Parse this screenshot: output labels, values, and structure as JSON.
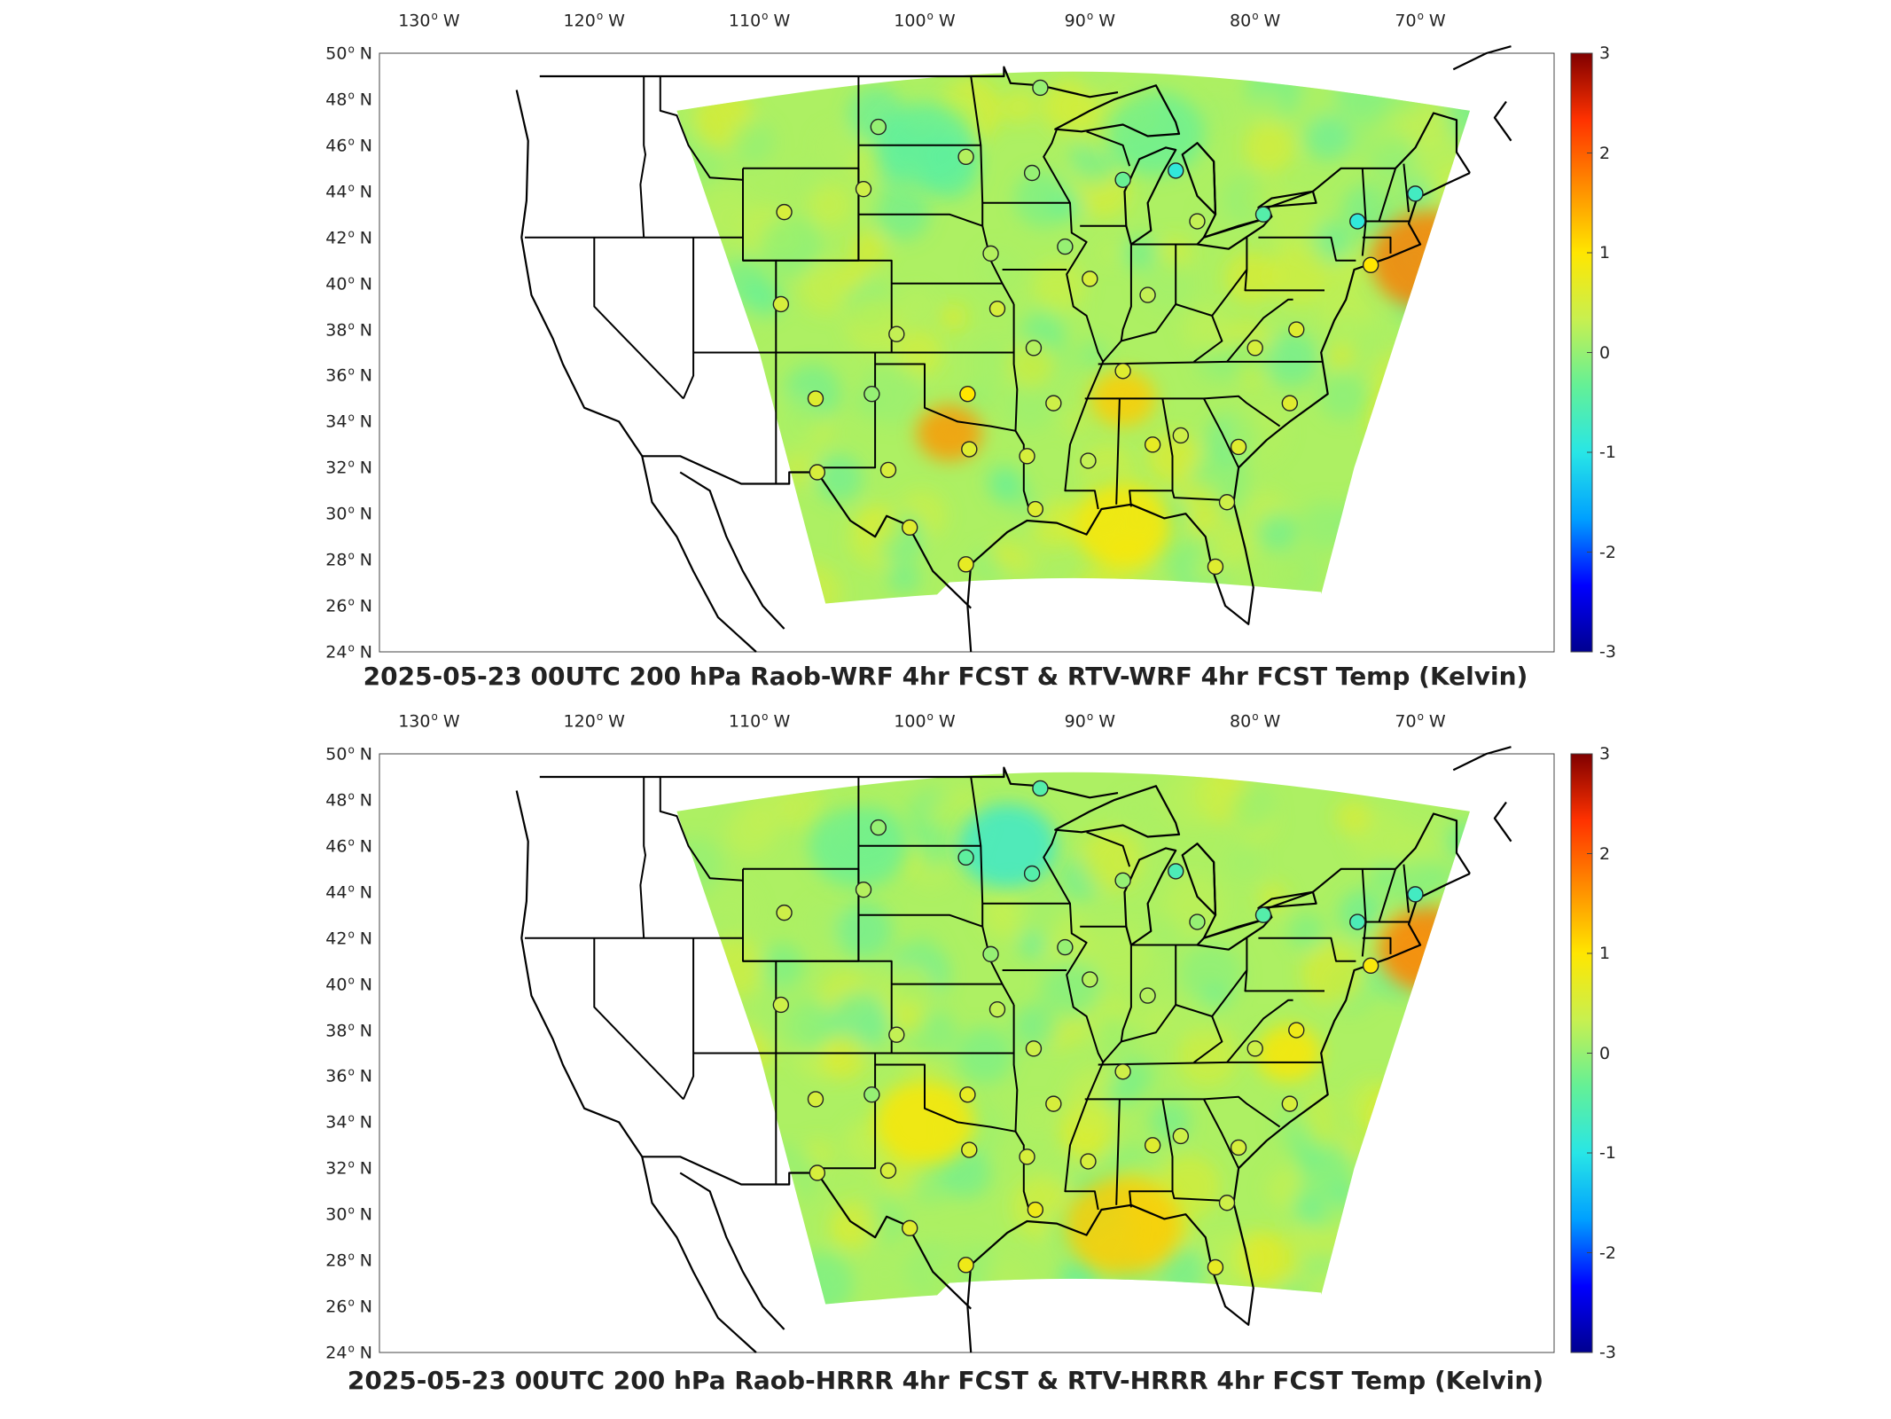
{
  "colors": {
    "scale": [
      "#00008f",
      "#0000ff",
      "#00a0ff",
      "#28e6e6",
      "#64f096",
      "#c8f050",
      "#ffe600",
      "#ff8c00",
      "#ff3200",
      "#800000"
    ],
    "border": "#000000",
    "station_ring": "#222222"
  },
  "axes": {
    "lon_ticks": [
      {
        "value": -130,
        "deg": "130",
        "hem": "W"
      },
      {
        "value": -120,
        "deg": "120",
        "hem": "W"
      },
      {
        "value": -110,
        "deg": "110",
        "hem": "W"
      },
      {
        "value": -100,
        "deg": "100",
        "hem": "W"
      },
      {
        "value": -90,
        "deg": "90",
        "hem": "W"
      },
      {
        "value": -80,
        "deg": "80",
        "hem": "W"
      },
      {
        "value": -70,
        "deg": "70",
        "hem": "W"
      }
    ],
    "lat_ticks": [
      {
        "value": 50,
        "deg": "50",
        "hem": "N"
      },
      {
        "value": 48,
        "deg": "48",
        "hem": "N"
      },
      {
        "value": 46,
        "deg": "46",
        "hem": "N"
      },
      {
        "value": 44,
        "deg": "44",
        "hem": "N"
      },
      {
        "value": 42,
        "deg": "42",
        "hem": "N"
      },
      {
        "value": 40,
        "deg": "40",
        "hem": "N"
      },
      {
        "value": 38,
        "deg": "38",
        "hem": "N"
      },
      {
        "value": 36,
        "deg": "36",
        "hem": "N"
      },
      {
        "value": 34,
        "deg": "34",
        "hem": "N"
      },
      {
        "value": 32,
        "deg": "32",
        "hem": "N"
      },
      {
        "value": 30,
        "deg": "30",
        "hem": "N"
      },
      {
        "value": 28,
        "deg": "28",
        "hem": "N"
      },
      {
        "value": 26,
        "deg": "26",
        "hem": "N"
      },
      {
        "value": 24,
        "deg": "24",
        "hem": "N"
      }
    ],
    "colorbar_ticks": [
      "3",
      "2",
      "1",
      "0",
      "-1",
      "-2",
      "-3"
    ],
    "colorbar_range": [
      -3,
      3
    ]
  },
  "panels": [
    {
      "id": "top",
      "title": "2025-05-23 00UTC 200 hPa Raob-WRF 4hr FCST & RTV-WRF 4hr FCST Temp (Kelvin)",
      "hotspots": [
        {
          "lon": -69.5,
          "lat": 41.0,
          "value": 1.8,
          "r": 3.5
        },
        {
          "lon": -98.5,
          "lat": 33.5,
          "value": 1.6,
          "r": 2.0
        },
        {
          "lon": -88,
          "lat": 35,
          "value": 1.2,
          "r": 2.0
        },
        {
          "lon": -88,
          "lat": 29.5,
          "value": 1.0,
          "r": 3.0
        },
        {
          "lon": -70,
          "lat": 34,
          "value": 0.8,
          "r": 3.0
        },
        {
          "lon": -100,
          "lat": 46,
          "value": -0.4,
          "r": 3.0
        },
        {
          "lon": -86,
          "lat": 46.5,
          "value": -0.3,
          "r": 3.0
        }
      ],
      "stations": [
        {
          "lon": -93.0,
          "lat": 48.5,
          "value": 0.0
        },
        {
          "lon": -102.8,
          "lat": 46.8,
          "value": 0.0
        },
        {
          "lon": -97.5,
          "lat": 45.5,
          "value": 0.2
        },
        {
          "lon": -93.5,
          "lat": 44.8,
          "value": 0.0
        },
        {
          "lon": -88.0,
          "lat": 44.5,
          "value": -0.3
        },
        {
          "lon": -84.8,
          "lat": 44.9,
          "value": -0.9
        },
        {
          "lon": -83.5,
          "lat": 42.7,
          "value": 0.3
        },
        {
          "lon": -79.5,
          "lat": 43.0,
          "value": -0.5
        },
        {
          "lon": -73.8,
          "lat": 42.7,
          "value": -0.9
        },
        {
          "lon": -70.3,
          "lat": 43.9,
          "value": -0.7
        },
        {
          "lon": -73.0,
          "lat": 40.8,
          "value": 1.0
        },
        {
          "lon": -108.5,
          "lat": 43.1,
          "value": 0.5
        },
        {
          "lon": -103.7,
          "lat": 44.1,
          "value": 0.4
        },
        {
          "lon": -96.0,
          "lat": 41.3,
          "value": 0.2
        },
        {
          "lon": -91.5,
          "lat": 41.6,
          "value": 0.0
        },
        {
          "lon": -90.0,
          "lat": 40.2,
          "value": 0.5
        },
        {
          "lon": -86.5,
          "lat": 39.5,
          "value": 0.3
        },
        {
          "lon": -108.7,
          "lat": 39.1,
          "value": 0.5
        },
        {
          "lon": -101.7,
          "lat": 37.8,
          "value": 0.3
        },
        {
          "lon": -95.6,
          "lat": 38.9,
          "value": 0.5
        },
        {
          "lon": -93.4,
          "lat": 37.2,
          "value": 0.2
        },
        {
          "lon": -80.0,
          "lat": 37.2,
          "value": 0.5
        },
        {
          "lon": -77.5,
          "lat": 38.0,
          "value": 0.6
        },
        {
          "lon": -88.0,
          "lat": 36.2,
          "value": 0.6
        },
        {
          "lon": -106.6,
          "lat": 35.0,
          "value": 0.6
        },
        {
          "lon": -103.2,
          "lat": 35.2,
          "value": 0.0
        },
        {
          "lon": -97.4,
          "lat": 35.2,
          "value": 1.0
        },
        {
          "lon": -92.2,
          "lat": 34.8,
          "value": 0.4
        },
        {
          "lon": -77.9,
          "lat": 34.8,
          "value": 0.6
        },
        {
          "lon": -106.5,
          "lat": 31.8,
          "value": 0.5
        },
        {
          "lon": -102.2,
          "lat": 31.9,
          "value": 0.5
        },
        {
          "lon": -97.3,
          "lat": 32.8,
          "value": 0.6
        },
        {
          "lon": -93.8,
          "lat": 32.5,
          "value": 0.5
        },
        {
          "lon": -90.1,
          "lat": 32.3,
          "value": 0.3
        },
        {
          "lon": -86.2,
          "lat": 33.0,
          "value": 0.7
        },
        {
          "lon": -84.5,
          "lat": 33.4,
          "value": 0.4
        },
        {
          "lon": -81.0,
          "lat": 32.9,
          "value": 0.6
        },
        {
          "lon": -100.9,
          "lat": 29.4,
          "value": 0.6
        },
        {
          "lon": -93.3,
          "lat": 30.2,
          "value": 0.6
        },
        {
          "lon": -81.7,
          "lat": 30.5,
          "value": 0.4
        },
        {
          "lon": -97.5,
          "lat": 27.8,
          "value": 0.7
        },
        {
          "lon": -82.4,
          "lat": 27.7,
          "value": 0.6
        }
      ]
    },
    {
      "id": "bot",
      "title": "2025-05-23 00UTC 200 hPa Raob-HRRR 4hr FCST & RTV-HRRR 4hr FCST Temp (Kelvin)",
      "hotspots": [
        {
          "lon": -69.5,
          "lat": 41.5,
          "value": 1.8,
          "r": 3.0
        },
        {
          "lon": -88,
          "lat": 29.5,
          "value": 1.2,
          "r": 3.5
        },
        {
          "lon": -100,
          "lat": 34,
          "value": 1.0,
          "r": 3.0
        },
        {
          "lon": -78,
          "lat": 37,
          "value": 1.0,
          "r": 2.0
        },
        {
          "lon": -70,
          "lat": 34,
          "value": 0.8,
          "r": 3.0
        },
        {
          "lon": -95,
          "lat": 46,
          "value": -0.8,
          "r": 3.0
        },
        {
          "lon": -104,
          "lat": 46,
          "value": -0.3,
          "r": 3.0
        }
      ],
      "stations": [
        {
          "lon": -93.0,
          "lat": 48.5,
          "value": -0.5
        },
        {
          "lon": -102.8,
          "lat": 46.8,
          "value": 0.0
        },
        {
          "lon": -97.5,
          "lat": 45.5,
          "value": -0.4
        },
        {
          "lon": -93.5,
          "lat": 44.8,
          "value": -0.5
        },
        {
          "lon": -88.0,
          "lat": 44.5,
          "value": 0.0
        },
        {
          "lon": -84.8,
          "lat": 44.9,
          "value": -0.6
        },
        {
          "lon": -83.5,
          "lat": 42.7,
          "value": 0.0
        },
        {
          "lon": -79.5,
          "lat": 43.0,
          "value": -0.5
        },
        {
          "lon": -73.8,
          "lat": 42.7,
          "value": -0.6
        },
        {
          "lon": -70.3,
          "lat": 43.9,
          "value": -0.7
        },
        {
          "lon": -73.0,
          "lat": 40.8,
          "value": 0.9
        },
        {
          "lon": -108.5,
          "lat": 43.1,
          "value": 0.4
        },
        {
          "lon": -103.7,
          "lat": 44.1,
          "value": 0.2
        },
        {
          "lon": -96.0,
          "lat": 41.3,
          "value": 0.0
        },
        {
          "lon": -91.5,
          "lat": 41.6,
          "value": 0.0
        },
        {
          "lon": -90.0,
          "lat": 40.2,
          "value": 0.2
        },
        {
          "lon": -86.5,
          "lat": 39.5,
          "value": 0.2
        },
        {
          "lon": -108.7,
          "lat": 39.1,
          "value": 0.4
        },
        {
          "lon": -101.7,
          "lat": 37.8,
          "value": 0.3
        },
        {
          "lon": -95.6,
          "lat": 38.9,
          "value": 0.3
        },
        {
          "lon": -93.4,
          "lat": 37.2,
          "value": 0.4
        },
        {
          "lon": -80.0,
          "lat": 37.2,
          "value": 0.4
        },
        {
          "lon": -77.5,
          "lat": 38.0,
          "value": 0.8
        },
        {
          "lon": -88.0,
          "lat": 36.2,
          "value": 0.4
        },
        {
          "lon": -106.6,
          "lat": 35.0,
          "value": 0.5
        },
        {
          "lon": -103.2,
          "lat": 35.2,
          "value": 0.0
        },
        {
          "lon": -97.4,
          "lat": 35.2,
          "value": 0.7
        },
        {
          "lon": -92.2,
          "lat": 34.8,
          "value": 0.5
        },
        {
          "lon": -77.9,
          "lat": 34.8,
          "value": 0.5
        },
        {
          "lon": -106.5,
          "lat": 31.8,
          "value": 0.5
        },
        {
          "lon": -102.2,
          "lat": 31.9,
          "value": 0.5
        },
        {
          "lon": -97.3,
          "lat": 32.8,
          "value": 0.6
        },
        {
          "lon": -93.8,
          "lat": 32.5,
          "value": 0.5
        },
        {
          "lon": -90.1,
          "lat": 32.3,
          "value": 0.5
        },
        {
          "lon": -86.2,
          "lat": 33.0,
          "value": 0.6
        },
        {
          "lon": -84.5,
          "lat": 33.4,
          "value": 0.4
        },
        {
          "lon": -81.0,
          "lat": 32.9,
          "value": 0.5
        },
        {
          "lon": -100.9,
          "lat": 29.4,
          "value": 0.6
        },
        {
          "lon": -93.3,
          "lat": 30.2,
          "value": 0.8
        },
        {
          "lon": -81.7,
          "lat": 30.5,
          "value": 0.4
        },
        {
          "lon": -97.5,
          "lat": 27.8,
          "value": 0.8
        },
        {
          "lon": -82.4,
          "lat": 27.7,
          "value": 0.7
        }
      ]
    }
  ]
}
